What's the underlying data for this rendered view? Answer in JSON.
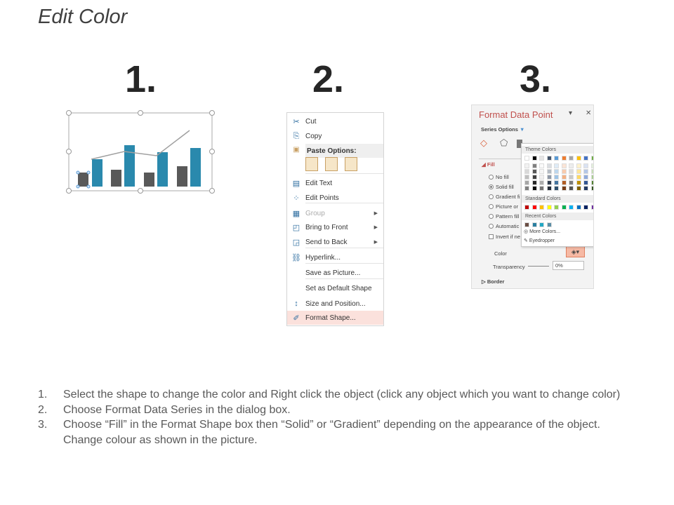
{
  "slide": {
    "title": "Edit Color",
    "steps": [
      "1.",
      "2.",
      "3."
    ]
  },
  "chart_example": {
    "colors": {
      "gray": "#595959",
      "blue": "#2a89ad",
      "line": "#a0a0a0"
    }
  },
  "context_menu": {
    "items": [
      {
        "label": "Cut",
        "icon": "scissors-icon"
      },
      {
        "label": "Copy",
        "icon": "copy-icon"
      },
      {
        "label": "Paste Options:",
        "icon": "paste-icon",
        "header": true
      },
      {
        "label": "Edit Text",
        "icon": "edit-text-icon"
      },
      {
        "label": "Edit Points",
        "icon": "edit-points-icon"
      },
      {
        "label": "Group",
        "icon": "group-icon",
        "disabled": true,
        "submenu": true
      },
      {
        "label": "Bring to Front",
        "icon": "bring-front-icon",
        "submenu": true
      },
      {
        "label": "Send to Back",
        "icon": "send-back-icon",
        "submenu": true
      },
      {
        "label": "Hyperlink...",
        "icon": "hyperlink-icon"
      },
      {
        "label": "Save as Picture...",
        "icon": ""
      },
      {
        "label": "Set as Default Shape",
        "icon": ""
      },
      {
        "label": "Size and Position...",
        "icon": "size-position-icon"
      },
      {
        "label": "Format Shape...",
        "icon": "format-shape-icon",
        "highlighted": true
      }
    ]
  },
  "format_panel": {
    "title": "Format Data Point",
    "series_options": "Series Options",
    "fill_label": "Fill",
    "fill_options": [
      {
        "label": "No fill",
        "checked": false
      },
      {
        "label": "Solid fill",
        "checked": true
      },
      {
        "label": "Gradient fi",
        "checked": false
      },
      {
        "label": "Picture or",
        "checked": false
      },
      {
        "label": "Pattern fill",
        "checked": false
      },
      {
        "label": "Automatic",
        "checked": false
      }
    ],
    "invert_label": "Invert if ne",
    "color_label": "Color",
    "transparency_label": "Transparency",
    "transparency_value": "0%",
    "border_label": "Border",
    "popup": {
      "theme_label": "Theme Colors",
      "standard_label": "Standard Colors",
      "recent_label": "Recent Colors",
      "more_colors": "More Colors...",
      "eyedropper": "Eyedropper",
      "theme_colors": [
        "#ffffff",
        "#000000",
        "#e7e6e6",
        "#44546a",
        "#5b9bd5",
        "#ed7d31",
        "#a5a5a5",
        "#ffc000",
        "#4472c4",
        "#70ad47"
      ],
      "standard_colors": [
        "#c00000",
        "#ff0000",
        "#ffc000",
        "#ffff00",
        "#92d050",
        "#00b050",
        "#00b0f0",
        "#0070c0",
        "#002060",
        "#7030a0"
      ],
      "recent_colors": [
        "#6b4f45",
        "#2a7fa0",
        "#22a8c4",
        "#5b8ea6"
      ]
    }
  },
  "instructions": [
    {
      "n": "1.",
      "text": "Select the shape to change the color and Right click the object (click any object which you want to change color)"
    },
    {
      "n": "2.",
      "text": "Choose Format Data Series in the dialog box."
    },
    {
      "n": "3.",
      "text": "Choose “Fill” in the Format Shape box then “Solid” or “Gradient” depending on the appearance of the object. Change colour as shown in the picture."
    }
  ]
}
